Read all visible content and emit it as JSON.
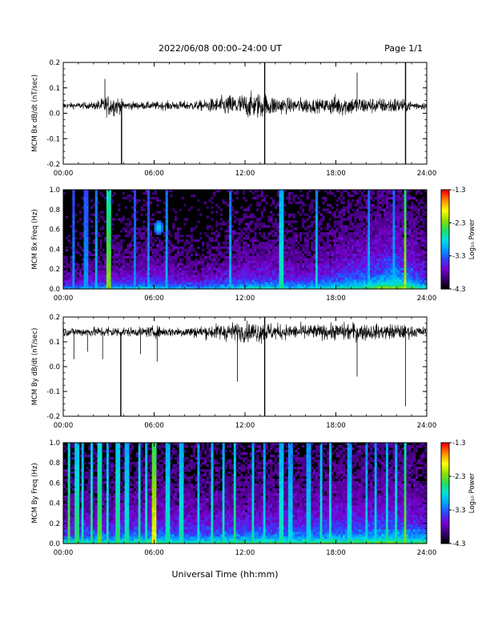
{
  "header": {
    "title": "2022/06/08  00:00–24:00 UT",
    "page": "Page 1/1"
  },
  "footer": {
    "xlabel": "Universal Time (hh:mm)"
  },
  "colors": {
    "trace": "#000000",
    "spectrogram_background": "#000000",
    "colormap": [
      "#000000",
      "#3a0070",
      "#7a00d0",
      "#3040ff",
      "#00a0ff",
      "#00e0e0",
      "#20e060",
      "#90e000",
      "#ffff00",
      "#ff9000",
      "#ff0000"
    ]
  },
  "chart_data": [
    {
      "type": "line",
      "ylabel": "MCM Bx dB/dt (nT/sec)",
      "ylim": [
        -0.2,
        0.2
      ],
      "yticks": [
        "0.2",
        "0.1",
        "0.0",
        "-0.1",
        "-0.2"
      ],
      "xlim": [
        0,
        24
      ],
      "xticks": [
        "00:00",
        "06:00",
        "12:00",
        "18:00",
        "24:00"
      ],
      "baseline": 0.03,
      "envelope": {
        "x_hours": [
          0,
          2,
          3,
          3.5,
          4,
          5,
          7,
          9,
          11,
          12,
          13,
          14,
          15,
          16,
          17,
          18,
          19,
          20,
          21,
          22,
          23,
          24
        ],
        "amplitude": [
          0.012,
          0.015,
          0.045,
          0.04,
          0.02,
          0.015,
          0.018,
          0.02,
          0.045,
          0.05,
          0.055,
          0.04,
          0.03,
          0.035,
          0.025,
          0.045,
          0.04,
          0.035,
          0.03,
          0.035,
          0.02,
          0.015
        ]
      },
      "spikes": [
        {
          "x_hours": 2.75,
          "y": 0.135
        },
        {
          "x_hours": 3.85,
          "y": -0.2
        },
        {
          "x_hours": 13.3,
          "y": -0.2
        },
        {
          "x_hours": 13.3,
          "y": 0.2
        },
        {
          "x_hours": 19.4,
          "y": 0.16
        },
        {
          "x_hours": 22.6,
          "y": -0.2
        },
        {
          "x_hours": 22.6,
          "y": 0.2
        }
      ]
    },
    {
      "type": "heatmap",
      "ylabel": "MCM Bx Freq (Hz)",
      "ylim": [
        0,
        1.0
      ],
      "yticks": [
        "1.0",
        "0.8",
        "0.6",
        "0.4",
        "0.2",
        "0.0"
      ],
      "xlim": [
        0,
        24
      ],
      "xticks": [
        "00:00",
        "06:00",
        "12:00",
        "18:00",
        "24:00"
      ],
      "colorbar": {
        "label": "Log₁₀ Power",
        "range": [
          -4.3,
          -1.3
        ],
        "ticks": [
          "-1.3",
          "-2.3",
          "-3.3",
          "-4.3"
        ]
      },
      "activity_profile": {
        "x_hours": [
          0,
          3,
          6,
          9,
          12,
          14,
          16,
          18,
          20,
          22,
          24
        ],
        "level": [
          0.25,
          0.35,
          0.4,
          0.3,
          0.45,
          0.45,
          0.4,
          0.5,
          0.6,
          0.75,
          0.45
        ]
      },
      "vertical_bursts": [
        {
          "x_hours": 0.7,
          "power": 0.4
        },
        {
          "x_hours": 1.5,
          "power": 0.4
        },
        {
          "x_hours": 2.2,
          "power": 0.45
        },
        {
          "x_hours": 3.0,
          "power": 0.7
        },
        {
          "x_hours": 4.7,
          "power": 0.4
        },
        {
          "x_hours": 5.6,
          "power": 0.4
        },
        {
          "x_hours": 6.8,
          "power": 0.45
        },
        {
          "x_hours": 11.0,
          "power": 0.45
        },
        {
          "x_hours": 14.4,
          "power": 0.55
        },
        {
          "x_hours": 16.7,
          "power": 0.5
        },
        {
          "x_hours": 20.2,
          "power": 0.45
        },
        {
          "x_hours": 21.8,
          "power": 0.45
        },
        {
          "x_hours": 22.6,
          "power": 0.75
        }
      ],
      "blobs": [
        {
          "x_hours": 6.3,
          "freq_hz": 0.62,
          "power": 0.55
        }
      ]
    },
    {
      "type": "line",
      "ylabel": "MCM By dB/dt (nT/sec)",
      "ylim": [
        -0.2,
        0.2
      ],
      "yticks": [
        "0.2",
        "0.1",
        "0.0",
        "-0.1",
        "-0.2"
      ],
      "xlim": [
        0,
        24
      ],
      "xticks": [
        "00:00",
        "06:00",
        "12:00",
        "18:00",
        "24:00"
      ],
      "baseline": 0.14,
      "envelope": {
        "x_hours": [
          0,
          2,
          3,
          4,
          5,
          6,
          7,
          9,
          11,
          12,
          13,
          14,
          15,
          16,
          17,
          18,
          19,
          20,
          21,
          22,
          23,
          24
        ],
        "amplitude": [
          0.018,
          0.02,
          0.025,
          0.02,
          0.018,
          0.025,
          0.02,
          0.025,
          0.04,
          0.04,
          0.045,
          0.035,
          0.03,
          0.035,
          0.03,
          0.035,
          0.04,
          0.035,
          0.03,
          0.035,
          0.025,
          0.02
        ]
      },
      "spikes": [
        {
          "x_hours": 0.7,
          "y": 0.03
        },
        {
          "x_hours": 1.6,
          "y": 0.06
        },
        {
          "x_hours": 2.6,
          "y": 0.03
        },
        {
          "x_hours": 3.8,
          "y": -0.2
        },
        {
          "x_hours": 5.1,
          "y": 0.05
        },
        {
          "x_hours": 6.2,
          "y": 0.02
        },
        {
          "x_hours": 11.5,
          "y": -0.06
        },
        {
          "x_hours": 13.3,
          "y": -0.2
        },
        {
          "x_hours": 13.3,
          "y": 0.2
        },
        {
          "x_hours": 19.4,
          "y": -0.04
        },
        {
          "x_hours": 22.6,
          "y": -0.16
        }
      ]
    },
    {
      "type": "heatmap",
      "ylabel": "MCM By Freq (Hz)",
      "ylim": [
        0,
        1.0
      ],
      "yticks": [
        "1.0",
        "0.8",
        "0.6",
        "0.4",
        "0.2",
        "0.0"
      ],
      "xlim": [
        0,
        24
      ],
      "xticks": [
        "00:00",
        "06:00",
        "12:00",
        "18:00",
        "24:00"
      ],
      "colorbar": {
        "label": "Log₁₀ Power",
        "range": [
          -4.3,
          -1.3
        ],
        "ticks": [
          "-1.3",
          "-2.3",
          "-3.3",
          "-4.3"
        ]
      },
      "activity_profile": {
        "x_hours": [
          0,
          3,
          6,
          9,
          12,
          14,
          16,
          18,
          20,
          22,
          24
        ],
        "level": [
          0.45,
          0.5,
          0.55,
          0.5,
          0.55,
          0.55,
          0.55,
          0.6,
          0.6,
          0.65,
          0.55
        ]
      },
      "vertical_bursts": [
        {
          "x_hours": 0.4,
          "power": 0.65
        },
        {
          "x_hours": 0.9,
          "power": 0.6
        },
        {
          "x_hours": 1.3,
          "power": 0.55
        },
        {
          "x_hours": 1.9,
          "power": 0.6
        },
        {
          "x_hours": 2.4,
          "power": 0.65
        },
        {
          "x_hours": 2.9,
          "power": 0.55
        },
        {
          "x_hours": 3.6,
          "power": 0.6
        },
        {
          "x_hours": 4.2,
          "power": 0.55
        },
        {
          "x_hours": 5.0,
          "power": 0.6
        },
        {
          "x_hours": 5.5,
          "power": 0.55
        },
        {
          "x_hours": 6.0,
          "power": 0.8
        },
        {
          "x_hours": 6.9,
          "power": 0.55
        },
        {
          "x_hours": 7.8,
          "power": 0.55
        },
        {
          "x_hours": 8.9,
          "power": 0.5
        },
        {
          "x_hours": 9.8,
          "power": 0.55
        },
        {
          "x_hours": 10.6,
          "power": 0.55
        },
        {
          "x_hours": 11.3,
          "power": 0.6
        },
        {
          "x_hours": 12.5,
          "power": 0.55
        },
        {
          "x_hours": 13.3,
          "power": 0.5
        },
        {
          "x_hours": 14.4,
          "power": 0.55
        },
        {
          "x_hours": 15.0,
          "power": 0.5
        },
        {
          "x_hours": 16.2,
          "power": 0.5
        },
        {
          "x_hours": 17.0,
          "power": 0.55
        },
        {
          "x_hours": 17.6,
          "power": 0.55
        },
        {
          "x_hours": 18.9,
          "power": 0.5
        },
        {
          "x_hours": 20.0,
          "power": 0.5
        },
        {
          "x_hours": 20.6,
          "power": 0.5
        },
        {
          "x_hours": 21.4,
          "power": 0.55
        },
        {
          "x_hours": 22.0,
          "power": 0.55
        },
        {
          "x_hours": 22.6,
          "power": 0.7
        }
      ],
      "blobs": []
    }
  ]
}
